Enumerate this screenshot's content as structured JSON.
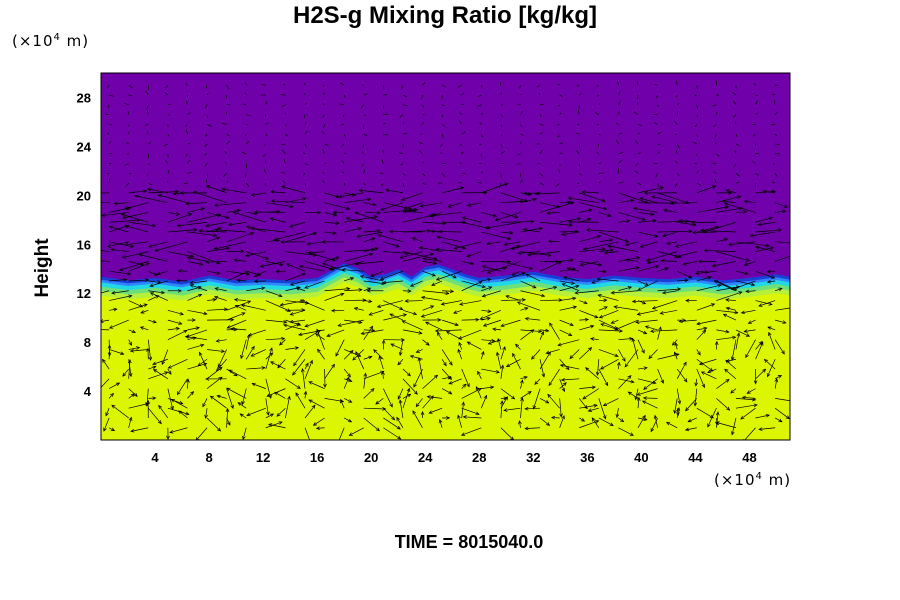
{
  "chart_data": {
    "type": "heatmap",
    "title": "H2S-g Mixing Ratio [kg/kg]",
    "ylabel": "Height",
    "x_unit": "m",
    "y_unit": "m",
    "unit_multiplier": "×10",
    "unit_exponent": "4",
    "footer": "TIME = 8015040.0",
    "xlim": [
      0,
      51
    ],
    "ylim": [
      0,
      30
    ],
    "x_ticks": [
      4,
      8,
      12,
      16,
      20,
      24,
      28,
      32,
      36,
      40,
      44,
      48
    ],
    "y_ticks": [
      4,
      8,
      12,
      16,
      20,
      24,
      28
    ],
    "field_colors": {
      "low_layer": "#dcf500",
      "upper_layer": "#7000aa"
    },
    "overlay": "wind vectors",
    "interface_height": [
      [
        0,
        12.8
      ],
      [
        2,
        12.5
      ],
      [
        4,
        12.7
      ],
      [
        6,
        12.4
      ],
      [
        8,
        12.9
      ],
      [
        10,
        12.5
      ],
      [
        12,
        12.6
      ],
      [
        14,
        12.5
      ],
      [
        16,
        12.7
      ],
      [
        17,
        13.3
      ],
      [
        18,
        13.9
      ],
      [
        19,
        13.5
      ],
      [
        20,
        12.8
      ],
      [
        21,
        13.0
      ],
      [
        22,
        13.4
      ],
      [
        23,
        12.8
      ],
      [
        24,
        13.6
      ],
      [
        25,
        13.8
      ],
      [
        26,
        13.4
      ],
      [
        27,
        13.0
      ],
      [
        28,
        12.7
      ],
      [
        30,
        12.9
      ],
      [
        32,
        13.2
      ],
      [
        34,
        12.8
      ],
      [
        36,
        12.6
      ],
      [
        38,
        12.9
      ],
      [
        40,
        12.7
      ],
      [
        42,
        12.6
      ],
      [
        44,
        12.8
      ],
      [
        46,
        12.5
      ],
      [
        48,
        12.7
      ],
      [
        50,
        13.0
      ],
      [
        51,
        12.8
      ]
    ]
  }
}
